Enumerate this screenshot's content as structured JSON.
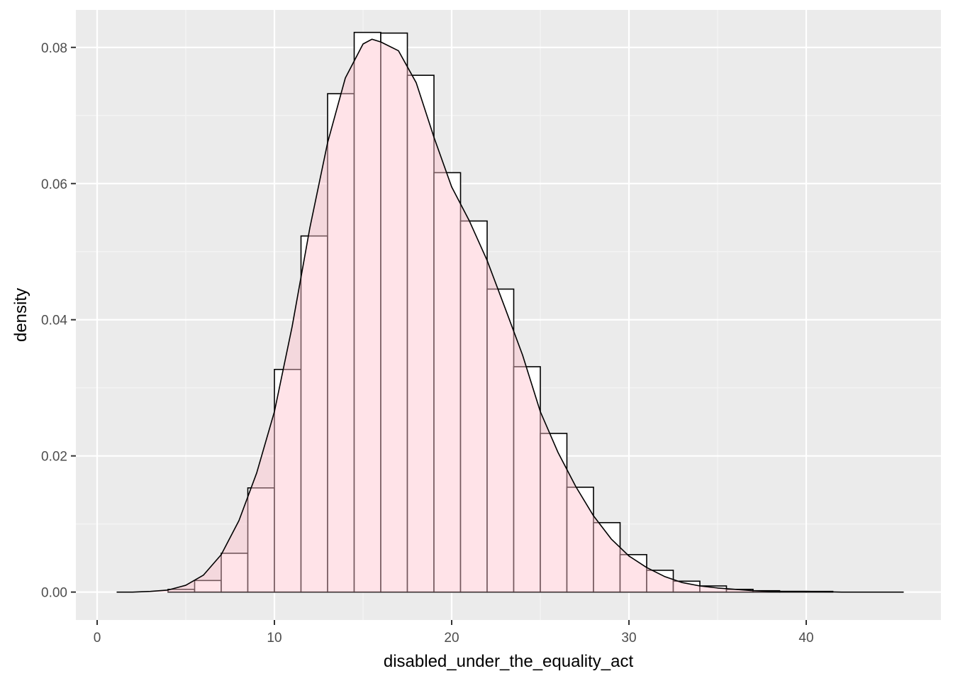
{
  "chart_data": {
    "type": "histogram",
    "xlabel": "disabled_under_the_equality_act",
    "ylabel": "density",
    "xlim": [
      -1.2,
      47.6
    ],
    "ylim": [
      -0.0041,
      0.0855
    ],
    "x_ticks": [
      0,
      10,
      20,
      30,
      40
    ],
    "x_tick_labels": [
      "0",
      "10",
      "20",
      "30",
      "40"
    ],
    "y_ticks": [
      0.0,
      0.02,
      0.04,
      0.06,
      0.08
    ],
    "y_tick_labels": [
      "0.00",
      "0.02",
      "0.04",
      "0.06",
      "0.08"
    ],
    "grid": true,
    "legend": "none",
    "histogram": {
      "bin_edges": [
        4.0,
        5.5,
        7.0,
        8.5,
        10.0,
        11.5,
        13.0,
        14.5,
        16.0,
        17.5,
        19.0,
        20.5,
        22.0,
        23.5,
        25.0,
        26.5,
        28.0,
        29.5,
        31.0,
        32.5,
        34.0,
        35.5,
        37.0,
        38.5,
        40.0,
        41.5
      ],
      "density": [
        0.0004,
        0.0017,
        0.0057,
        0.0153,
        0.0327,
        0.0523,
        0.0732,
        0.0822,
        0.0821,
        0.0759,
        0.0616,
        0.0545,
        0.0445,
        0.0331,
        0.0233,
        0.0154,
        0.0102,
        0.0055,
        0.0032,
        0.0016,
        0.0009,
        0.0004,
        0.0002,
        0.0001,
        0.0001
      ]
    },
    "density_curve": {
      "x": [
        1.1,
        2.0,
        3.0,
        4.0,
        5.0,
        6.0,
        7.0,
        8.0,
        9.0,
        10.0,
        11.0,
        12.0,
        13.0,
        14.0,
        15.0,
        15.5,
        16.0,
        17.0,
        18.0,
        19.0,
        20.0,
        21.0,
        22.0,
        23.0,
        24.0,
        25.0,
        26.0,
        27.0,
        28.0,
        29.0,
        30.0,
        31.0,
        32.0,
        33.0,
        34.0,
        35.0,
        36.0,
        37.0,
        38.0,
        40.0,
        42.0,
        45.5
      ],
      "y": [
        0.0,
        0.0,
        0.0001,
        0.0003,
        0.001,
        0.0025,
        0.0055,
        0.0105,
        0.0175,
        0.0265,
        0.039,
        0.0535,
        0.066,
        0.0755,
        0.0805,
        0.0812,
        0.0808,
        0.0795,
        0.0748,
        0.0668,
        0.0595,
        0.0545,
        0.0487,
        0.0418,
        0.0348,
        0.0265,
        0.0205,
        0.0155,
        0.0112,
        0.0078,
        0.0053,
        0.0036,
        0.0023,
        0.0014,
        0.0009,
        0.0006,
        0.0004,
        0.0002,
        0.0001,
        0.0001,
        0.0,
        0.0
      ]
    },
    "colors": {
      "panel_background": "#ebebeb",
      "grid_major": "#ffffff",
      "grid_minor": "#f5f5f5",
      "bar_fill": "#ffffff",
      "bar_stroke": "#000000",
      "density_fill": "#ffc0cb",
      "density_fill_opacity": 0.45,
      "density_stroke": "#000000"
    }
  }
}
